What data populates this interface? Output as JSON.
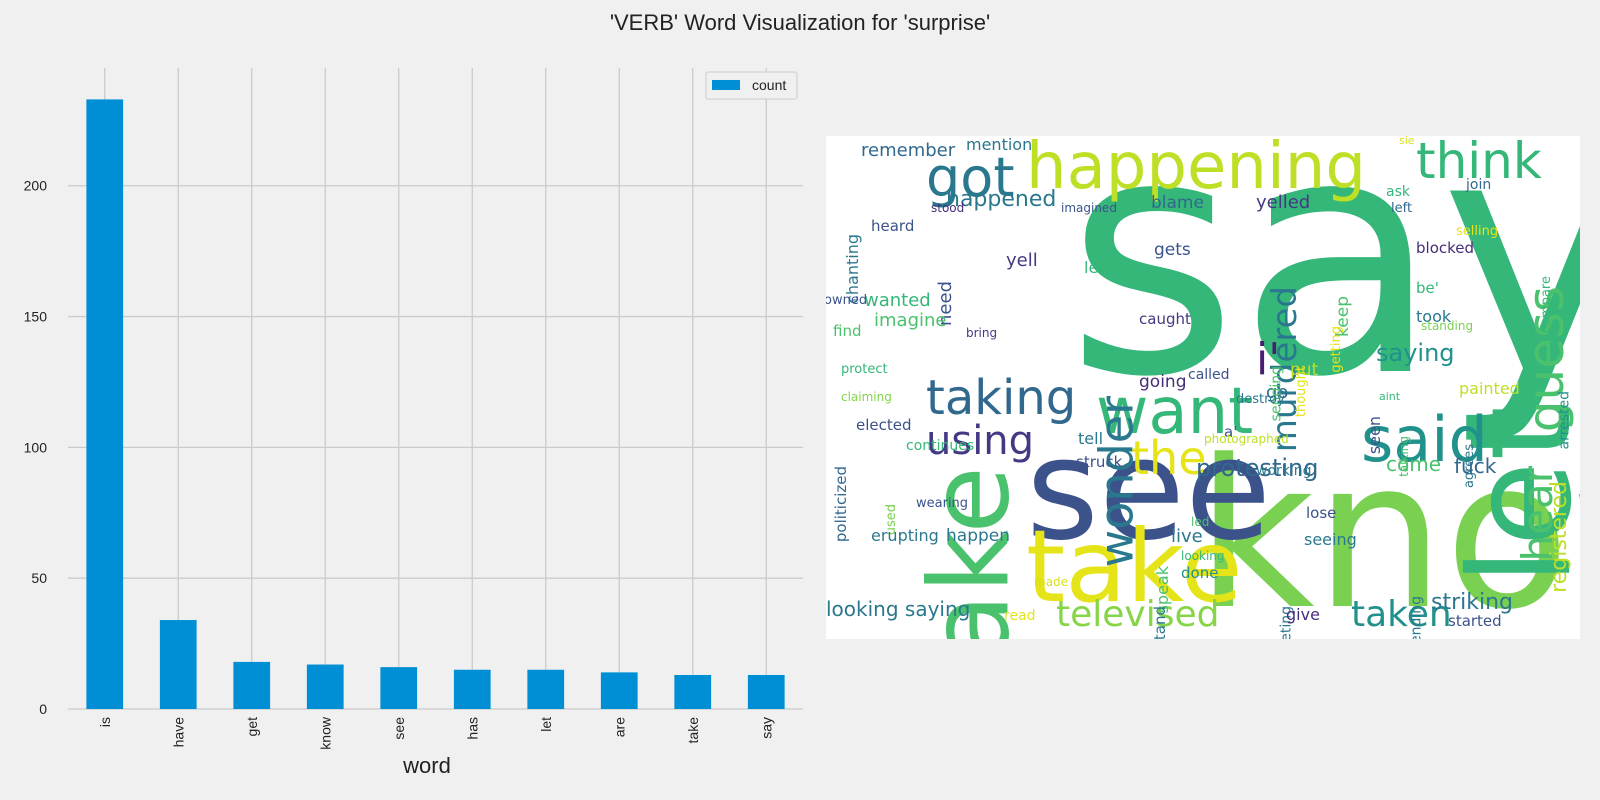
{
  "title": "'VERB' Word Visualization for 'surprise'",
  "colors": {
    "background": "#f0f0f0",
    "bar": "#008fd5",
    "grid": "#cbcbcb",
    "cloud_background": "#ffffff"
  },
  "chart_data": {
    "type": "bar",
    "xlabel": "word",
    "ylabel": "",
    "categories": [
      "is",
      "have",
      "get",
      "know",
      "see",
      "has",
      "let",
      "are",
      "take",
      "say"
    ],
    "series": [
      {
        "name": "count",
        "values": [
          233,
          34,
          18,
          17,
          16,
          15,
          15,
          14,
          13,
          13
        ]
      }
    ],
    "ylim": [
      0,
      245
    ],
    "yticks": [
      0,
      50,
      100,
      150,
      200
    ],
    "grid": true,
    "legend_position": "top-right"
  },
  "word_cloud": {
    "words": [
      {
        "text": "say",
        "color": "#35b779",
        "size": 330,
        "rotate": 0
      },
      {
        "text": "know",
        "color": "#7ad151",
        "size": 205,
        "rotate": 0
      },
      {
        "text": "see",
        "color": "#3b528b",
        "size": 140,
        "rotate": 0
      },
      {
        "text": "take",
        "color": "#e5e419",
        "size": 100,
        "rotate": 0
      },
      {
        "text": "make",
        "color": "#4ac16d",
        "size": 110,
        "rotate": -90
      },
      {
        "text": "let",
        "color": "#35b779",
        "size": 140,
        "rotate": -90
      },
      {
        "text": "happening",
        "color": "#bddf26",
        "size": 64,
        "rotate": 0
      },
      {
        "text": "think",
        "color": "#35b779",
        "size": 50,
        "rotate": 0
      },
      {
        "text": "got",
        "color": "#2a788e",
        "size": 54,
        "rotate": 0
      },
      {
        "text": "guess",
        "color": "#4ac16d",
        "size": 50,
        "rotate": -90
      },
      {
        "text": "want",
        "color": "#35b779",
        "size": 64,
        "rotate": 0
      },
      {
        "text": "said",
        "color": "#21918c",
        "size": 62,
        "rotate": 0
      },
      {
        "text": "taking",
        "color": "#31688e",
        "size": 48,
        "rotate": 0
      },
      {
        "text": "using",
        "color": "#443983",
        "size": 40,
        "rotate": 0
      },
      {
        "text": "the",
        "color": "#e5e419",
        "size": 46,
        "rotate": 0
      },
      {
        "text": "wonder",
        "color": "#2a788e",
        "size": 46,
        "rotate": -90
      },
      {
        "text": "hear",
        "color": "#4ac16d",
        "size": 42,
        "rotate": -90
      },
      {
        "text": "i'",
        "color": "#481f70",
        "size": 44,
        "rotate": 0
      },
      {
        "text": "murdered",
        "color": "#2a788e",
        "size": 34,
        "rotate": -90
      },
      {
        "text": "televised",
        "color": "#86d549",
        "size": 36,
        "rotate": 0
      },
      {
        "text": "taken",
        "color": "#21918c",
        "size": 36,
        "rotate": 0
      },
      {
        "text": "protesting",
        "color": "#31688e",
        "size": 24,
        "rotate": 0
      },
      {
        "text": "registered",
        "color": "#bddf26",
        "size": 22,
        "rotate": -90
      },
      {
        "text": "saying",
        "color": "#21918c",
        "size": 24,
        "rotate": 0
      },
      {
        "text": "happened",
        "color": "#2a788e",
        "size": 22,
        "rotate": 0
      },
      {
        "text": "remember",
        "color": "#31688e",
        "size": 18,
        "rotate": 0
      },
      {
        "text": "mention",
        "color": "#2a788e",
        "size": 16,
        "rotate": 0
      },
      {
        "text": "chanting",
        "color": "#2a788e",
        "size": 16,
        "rotate": -90
      },
      {
        "text": "heard",
        "color": "#3b528b",
        "size": 15,
        "rotate": 0
      },
      {
        "text": "need",
        "color": "#3b528b",
        "size": 18,
        "rotate": -90
      },
      {
        "text": "wanted",
        "color": "#35b779",
        "size": 18,
        "rotate": 0
      },
      {
        "text": "imagine",
        "color": "#4ac16d",
        "size": 18,
        "rotate": 0
      },
      {
        "text": "yell",
        "color": "#443983",
        "size": 18,
        "rotate": 0
      },
      {
        "text": "yelled",
        "color": "#443983",
        "size": 18,
        "rotate": 0
      },
      {
        "text": "blame",
        "color": "#31688e",
        "size": 17,
        "rotate": 0
      },
      {
        "text": "keep",
        "color": "#4ac16d",
        "size": 17,
        "rotate": -90
      },
      {
        "text": "gets",
        "color": "#3b528b",
        "size": 17,
        "rotate": 0
      },
      {
        "text": "leave",
        "color": "#35b779",
        "size": 16,
        "rotate": 0
      },
      {
        "text": "caught",
        "color": "#443983",
        "size": 15,
        "rotate": 0
      },
      {
        "text": "going",
        "color": "#472d7b",
        "size": 17,
        "rotate": 0
      },
      {
        "text": "called",
        "color": "#3b528b",
        "size": 14,
        "rotate": 0
      },
      {
        "text": "go",
        "color": "#31688e",
        "size": 18,
        "rotate": 0
      },
      {
        "text": "put",
        "color": "#bddf26",
        "size": 17,
        "rotate": 0
      },
      {
        "text": "took",
        "color": "#2a788e",
        "size": 16,
        "rotate": 0
      },
      {
        "text": "be'",
        "color": "#35b779",
        "size": 15,
        "rotate": 0
      },
      {
        "text": "blocked",
        "color": "#472d7b",
        "size": 15,
        "rotate": 0
      },
      {
        "text": "join",
        "color": "#31688e",
        "size": 14,
        "rotate": 0
      },
      {
        "text": "ask",
        "color": "#35b779",
        "size": 14,
        "rotate": 0
      },
      {
        "text": "left",
        "color": "#31688e",
        "size": 13,
        "rotate": 0
      },
      {
        "text": "sie",
        "color": "#d8e219",
        "size": 11,
        "rotate": 0
      },
      {
        "text": "selling",
        "color": "#e5e419",
        "size": 13,
        "rotate": 0
      },
      {
        "text": "getting",
        "color": "#e5e419",
        "size": 13,
        "rotate": -90
      },
      {
        "text": "compare",
        "color": "#35b779",
        "size": 13,
        "rotate": -90
      },
      {
        "text": "standing",
        "color": "#7ad151",
        "size": 12,
        "rotate": 0
      },
      {
        "text": "arrested",
        "color": "#21918c",
        "size": 14,
        "rotate": -90
      },
      {
        "text": "sending",
        "color": "#4ac16d",
        "size": 14,
        "rotate": -90
      },
      {
        "text": "thought",
        "color": "#e5e419",
        "size": 13,
        "rotate": -90
      },
      {
        "text": "imagined",
        "color": "#3b528b",
        "size": 12,
        "rotate": 0
      },
      {
        "text": "stood",
        "color": "#472d7b",
        "size": 12,
        "rotate": 0
      },
      {
        "text": "owned",
        "color": "#3b528b",
        "size": 13,
        "rotate": 0
      },
      {
        "text": "bring",
        "color": "#443983",
        "size": 12,
        "rotate": 0
      },
      {
        "text": "find",
        "color": "#4ac16d",
        "size": 15,
        "rotate": 0
      },
      {
        "text": "politicized",
        "color": "#31688e",
        "size": 15,
        "rotate": -90
      },
      {
        "text": "protect",
        "color": "#35b779",
        "size": 13,
        "rotate": 0
      },
      {
        "text": "claiming",
        "color": "#86d549",
        "size": 12,
        "rotate": 0
      },
      {
        "text": "elected",
        "color": "#3b528b",
        "size": 15,
        "rotate": 0
      },
      {
        "text": "continues",
        "color": "#35b779",
        "size": 14,
        "rotate": 0
      },
      {
        "text": "tell",
        "color": "#2a788e",
        "size": 16,
        "rotate": 0
      },
      {
        "text": "struck",
        "color": "#3b528b",
        "size": 15,
        "rotate": 0
      },
      {
        "text": "a'",
        "color": "#3b528b",
        "size": 15,
        "rotate": 0
      },
      {
        "text": "photographed",
        "color": "#bddf26",
        "size": 12,
        "rotate": 0
      },
      {
        "text": "working",
        "color": "#2a788e",
        "size": 14,
        "rotate": 0
      },
      {
        "text": "destroy",
        "color": "#2a788e",
        "size": 13,
        "rotate": 0
      },
      {
        "text": "seen",
        "color": "#3b528b",
        "size": 16,
        "rotate": -90
      },
      {
        "text": "talking",
        "color": "#4ac16d",
        "size": 12,
        "rotate": -90
      },
      {
        "text": "aint",
        "color": "#35b779",
        "size": 11,
        "rotate": 0
      },
      {
        "text": "painted",
        "color": "#bddf26",
        "size": 16,
        "rotate": 0
      },
      {
        "text": "agrees",
        "color": "#2a788e",
        "size": 13,
        "rotate": -90
      },
      {
        "text": "come",
        "color": "#4ac16d",
        "size": 20,
        "rotate": 0
      },
      {
        "text": "fuck",
        "color": "#31688e",
        "size": 20,
        "rotate": 0
      },
      {
        "text": "used",
        "color": "#7ad151",
        "size": 13,
        "rotate": -90
      },
      {
        "text": "wearing",
        "color": "#3b528b",
        "size": 13,
        "rotate": 0
      },
      {
        "text": "erupting",
        "color": "#2a788e",
        "size": 16,
        "rotate": 0
      },
      {
        "text": "happen",
        "color": "#2a788e",
        "size": 17,
        "rotate": 0
      },
      {
        "text": "speak",
        "color": "#4ac16d",
        "size": 16,
        "rotate": -90
      },
      {
        "text": "understand",
        "color": "#2a788e",
        "size": 15,
        "rotate": -90
      },
      {
        "text": "led",
        "color": "#4ac16d",
        "size": 12,
        "rotate": 0
      },
      {
        "text": "live",
        "color": "#2a788e",
        "size": 18,
        "rotate": 0
      },
      {
        "text": "looking",
        "color": "#35b779",
        "size": 12,
        "rotate": 0
      },
      {
        "text": "done",
        "color": "#21918c",
        "size": 15,
        "rotate": 0
      },
      {
        "text": "made",
        "color": "#d8e219",
        "size": 12,
        "rotate": 0
      },
      {
        "text": "tweeting",
        "color": "#2a788e",
        "size": 14,
        "rotate": -90
      },
      {
        "text": "lose",
        "color": "#3b528b",
        "size": 15,
        "rotate": 0
      },
      {
        "text": "seeing",
        "color": "#2a788e",
        "size": 16,
        "rotate": 0
      },
      {
        "text": "trending",
        "color": "#2a788e",
        "size": 14,
        "rotate": -90
      },
      {
        "text": "give",
        "color": "#472d7b",
        "size": 16,
        "rotate": 0
      },
      {
        "text": "looking saying",
        "color": "#2a788e",
        "size": 20,
        "rotate": 0
      },
      {
        "text": "read",
        "color": "#e5e419",
        "size": 14,
        "rotate": 0
      },
      {
        "text": "striking",
        "color": "#2a788e",
        "size": 22,
        "rotate": 0
      },
      {
        "text": "started",
        "color": "#3b528b",
        "size": 15,
        "rotate": 0
      }
    ]
  }
}
